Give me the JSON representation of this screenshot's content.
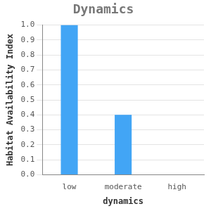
{
  "chart_data": {
    "type": "bar",
    "title": "Dynamics",
    "x_label": "dynamics",
    "y_label": "Habitat Availability Index",
    "categories": [
      "low",
      "moderate",
      "high"
    ],
    "values": [
      1.0,
      0.4,
      0
    ],
    "color": "#42a5f5",
    "ylim": [
      0,
      1.0
    ],
    "yticks": [
      {
        "value": 0,
        "label": "0.0"
      },
      0.1,
      0.2,
      0.3,
      0.4,
      0.5,
      0.6,
      0.7,
      0.8,
      0.9,
      {
        "value": 1.0,
        "label": "1.0"
      }
    ],
    "grid": true
  }
}
